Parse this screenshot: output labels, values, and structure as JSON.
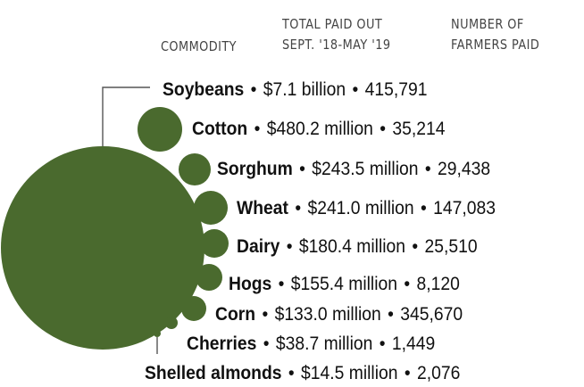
{
  "headers": {
    "commodity": "COMMODITY",
    "paid_line1": "TOTAL PAID OUT",
    "paid_line2": "SEPT. '18-MAY '19",
    "farmers_line1": "NUMBER OF",
    "farmers_line2": "FARMERS PAID"
  },
  "colors": {
    "bubble": "#4a6a2e",
    "leader": "#555555"
  },
  "separator": "•",
  "chart_data": {
    "type": "bubble",
    "series": [
      {
        "commodity": "Soybeans",
        "paid_label": "$7.1 billion",
        "paid_millions": 7100.0,
        "farmers_label": "415,791",
        "farmers": 415791
      },
      {
        "commodity": "Cotton",
        "paid_label": "$480.2 million",
        "paid_millions": 480.2,
        "farmers_label": "35,214",
        "farmers": 35214
      },
      {
        "commodity": "Sorghum",
        "paid_label": "$243.5 million",
        "paid_millions": 243.5,
        "farmers_label": "29,438",
        "farmers": 29438
      },
      {
        "commodity": "Wheat",
        "paid_label": "$241.0 million",
        "paid_millions": 241.0,
        "farmers_label": "147,083",
        "farmers": 147083
      },
      {
        "commodity": "Dairy",
        "paid_label": "$180.4 million",
        "paid_millions": 180.4,
        "farmers_label": "25,510",
        "farmers": 25510
      },
      {
        "commodity": "Hogs",
        "paid_label": "$155.4 million",
        "paid_millions": 155.4,
        "farmers_label": "8,120",
        "farmers": 8120
      },
      {
        "commodity": "Corn",
        "paid_label": "$133.0 million",
        "paid_millions": 133.0,
        "farmers_label": "345,670",
        "farmers": 345670
      },
      {
        "commodity": "Cherries",
        "paid_label": "$38.7 million",
        "paid_millions": 38.7,
        "farmers_label": "1,449",
        "farmers": 1449
      },
      {
        "commodity": "Shelled almonds",
        "paid_label": "$14.5 million",
        "paid_millions": 14.5,
        "farmers_label": "2,076",
        "farmers": 2076
      }
    ]
  }
}
